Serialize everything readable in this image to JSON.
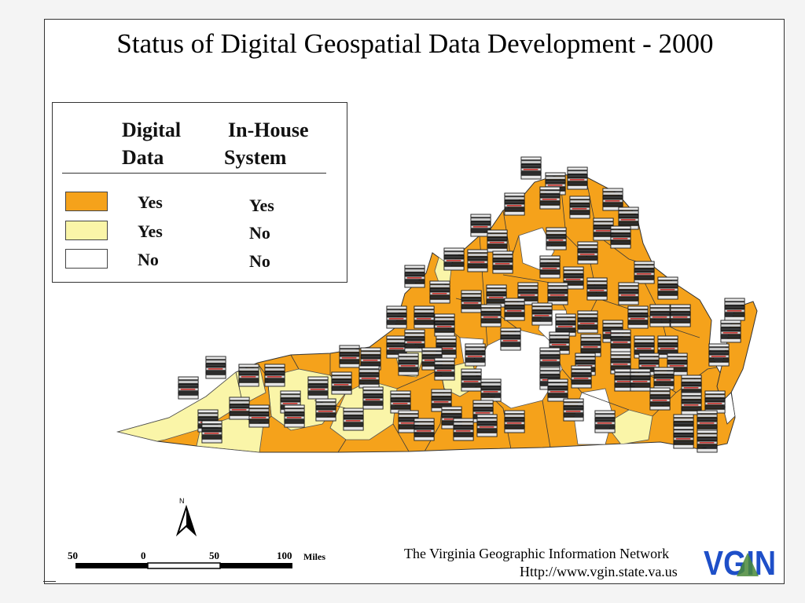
{
  "title": "Status of Digital Geospatial Data Development - 2000",
  "legend": {
    "heading_digital_line1": "Digital",
    "heading_digital_line2": "Data",
    "heading_system_line1": "In-House",
    "heading_system_line2": "System",
    "items": [
      {
        "color": "#f5a21b",
        "digital": "Yes",
        "system": "Yes"
      },
      {
        "color": "#faf5a8",
        "digital": "Yes",
        "system": "No"
      },
      {
        "color": "#ffffff",
        "digital": "No",
        "system": "No"
      }
    ]
  },
  "north_label": "N",
  "scale": {
    "labels": [
      "50",
      "0",
      "50",
      "100"
    ],
    "unit": "Miles"
  },
  "credit": {
    "name": "The Virginia Geographic Information Network",
    "url": "Http://www.vgin.state.va.us"
  },
  "logo_text": "VGIN",
  "colors": {
    "orange": "#f5a21b",
    "pale": "#faf5a8",
    "none": "#ffffff",
    "logo_blue": "#1e4fc8",
    "logo_green": "#4a8a3a"
  },
  "map_symbol": "computer-stack-icon"
}
